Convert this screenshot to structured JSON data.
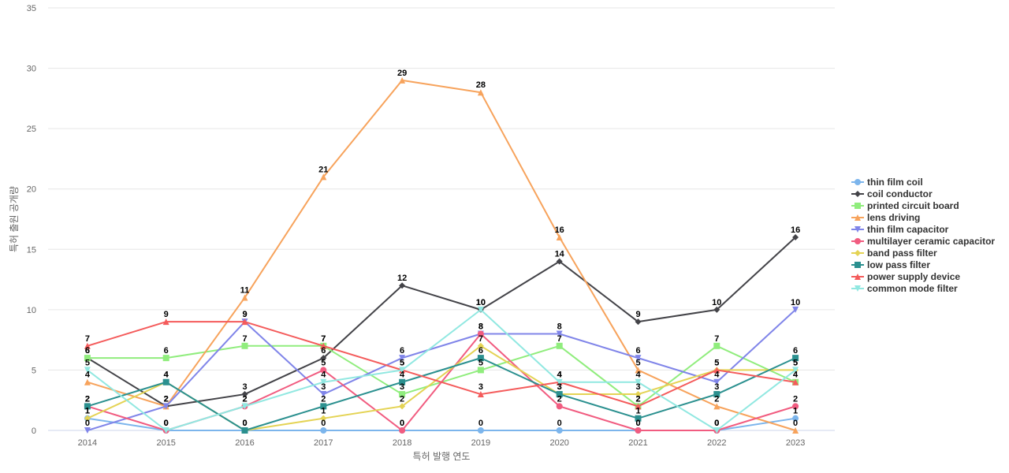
{
  "chart_data": {
    "type": "line",
    "title": "",
    "xlabel": "특허 발행 연도",
    "ylabel": "특허 출원 공개량",
    "ylim": [
      0,
      35
    ],
    "yticks": [
      0,
      5,
      10,
      15,
      20,
      25,
      30,
      35
    ],
    "grid": true,
    "legend_position": "right",
    "categories": [
      "2014",
      "2015",
      "2016",
      "2017",
      "2018",
      "2019",
      "2020",
      "2021",
      "2022",
      "2023"
    ],
    "series": [
      {
        "name": "thin film coil",
        "color": "#7cb5ec",
        "marker": "circle",
        "values": [
          1,
          0,
          0,
          0,
          0,
          0,
          0,
          0,
          0,
          1
        ]
      },
      {
        "name": "coil conductor",
        "color": "#434348",
        "marker": "diamond",
        "values": [
          6,
          2,
          3,
          6,
          12,
          10,
          14,
          9,
          10,
          16
        ]
      },
      {
        "name": "printed circuit board",
        "color": "#90ed7d",
        "marker": "square",
        "values": [
          6,
          6,
          7,
          7,
          3,
          5,
          7,
          2,
          7,
          4
        ]
      },
      {
        "name": "lens driving",
        "color": "#f7a35c",
        "marker": "triangle",
        "values": [
          4,
          2,
          11,
          21,
          29,
          28,
          16,
          5,
          2,
          0
        ]
      },
      {
        "name": "thin film capacitor",
        "color": "#8085e9",
        "marker": "triangle-down",
        "values": [
          0,
          2,
          9,
          3,
          6,
          8,
          8,
          6,
          4,
          10
        ]
      },
      {
        "name": "multilayer ceramic capacitor",
        "color": "#f15c80",
        "marker": "circle",
        "values": [
          2,
          0,
          2,
          5,
          0,
          8,
          2,
          0,
          0,
          2
        ]
      },
      {
        "name": "band pass filter",
        "color": "#e4d354",
        "marker": "diamond",
        "values": [
          1,
          4,
          0,
          1,
          2,
          7,
          3,
          3,
          5,
          5
        ]
      },
      {
        "name": "low pass filter",
        "color": "#2b908f",
        "marker": "square",
        "values": [
          2,
          4,
          0,
          2,
          4,
          6,
          3,
          1,
          3,
          6
        ]
      },
      {
        "name": "power supply device",
        "color": "#f45b5b",
        "marker": "triangle",
        "values": [
          7,
          9,
          9,
          7,
          5,
          3,
          4,
          2,
          5,
          4
        ]
      },
      {
        "name": "common mode filter",
        "color": "#91e8e1",
        "marker": "triangle-down",
        "values": [
          5,
          0,
          2,
          4,
          5,
          10,
          4,
          4,
          0,
          5
        ]
      }
    ]
  }
}
